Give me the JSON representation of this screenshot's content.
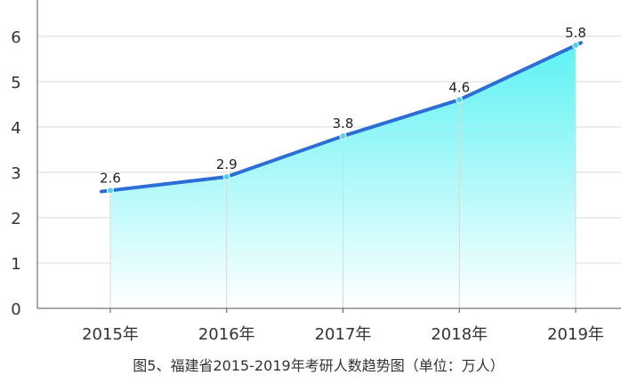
{
  "chart_data": {
    "type": "area",
    "title": "图5、福建省2015-2019年考研人数趋势图（单位：万人）",
    "xlabel": "",
    "ylabel": "",
    "categories": [
      "2015年",
      "2016年",
      "2017年",
      "2018年",
      "2019年"
    ],
    "series": [
      {
        "values": [
          2.6,
          2.9,
          3.8,
          4.6,
          5.8
        ]
      }
    ],
    "y_ticks": [
      "0",
      "1",
      "2",
      "3",
      "4",
      "5",
      "6"
    ],
    "ylim": [
      0,
      6.8
    ],
    "grid": true,
    "legend": "none",
    "colors": {
      "line": "#2b6fd6",
      "fill_top": "#5ef2f4",
      "fill_bottom": "#ffffff",
      "marker": "#4fd0ea",
      "grid": "#d9d9d9",
      "axis": "#555555"
    }
  }
}
